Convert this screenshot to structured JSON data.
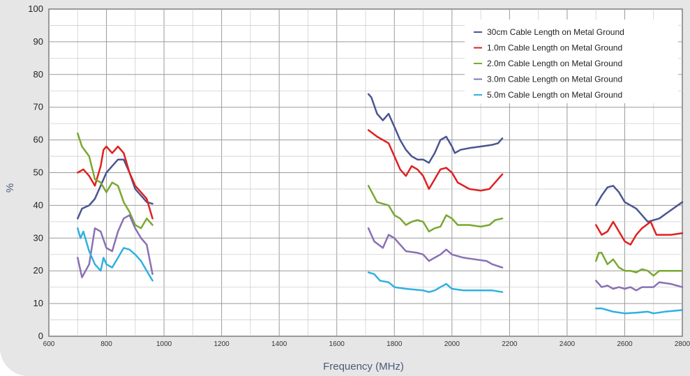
{
  "chart_data": {
    "type": "line",
    "title": "",
    "xlabel": "Frequency (MHz)",
    "ylabel": "%",
    "xlim": [
      600,
      2800
    ],
    "ylim": [
      0,
      100
    ],
    "xticks": [
      "600",
      "800",
      "1000",
      "1200",
      "1400",
      "1600",
      "1800",
      "2000",
      "2200",
      "2400",
      "2600",
      "2800"
    ],
    "yticks": [
      "0",
      "10",
      "20",
      "30",
      "40",
      "50",
      "60",
      "70",
      "80",
      "90",
      "100"
    ],
    "grid": true,
    "legend_position": "top-right",
    "legend": [
      "30cm Cable Length on Metal Ground",
      "1.0m Cable Length on Metal Ground",
      "2.0m Cable Length on Metal Ground",
      "3.0m Cable Length on Metal Ground",
      "5.0m Cable Length on Metal Ground"
    ],
    "series": [
      {
        "name": "30cm Cable Length on Metal Ground",
        "color": "#4a5590",
        "segments": [
          [
            [
              700,
              36
            ],
            [
              715,
              39
            ],
            [
              740,
              40
            ],
            [
              760,
              42
            ],
            [
              780,
              46
            ],
            [
              800,
              50
            ],
            [
              820,
              52
            ],
            [
              840,
              54
            ],
            [
              860,
              54
            ],
            [
              880,
              50
            ],
            [
              900,
              45
            ],
            [
              920,
              43
            ],
            [
              940,
              41
            ],
            [
              960,
              40.5
            ]
          ],
          [
            [
              1710,
              74
            ],
            [
              1720,
              73
            ],
            [
              1740,
              68
            ],
            [
              1760,
              66
            ],
            [
              1780,
              68
            ],
            [
              1800,
              64
            ],
            [
              1820,
              60
            ],
            [
              1840,
              57
            ],
            [
              1860,
              55
            ],
            [
              1880,
              54
            ],
            [
              1900,
              54
            ],
            [
              1920,
              53
            ],
            [
              1940,
              56
            ],
            [
              1960,
              60
            ],
            [
              1980,
              61
            ],
            [
              2000,
              58
            ],
            [
              2010,
              56
            ],
            [
              2030,
              57
            ],
            [
              2060,
              57.5
            ],
            [
              2100,
              58
            ],
            [
              2140,
              58.5
            ],
            [
              2160,
              59
            ],
            [
              2175,
              60.5
            ]
          ],
          [
            [
              2500,
              40
            ],
            [
              2520,
              43
            ],
            [
              2540,
              45.5
            ],
            [
              2560,
              46
            ],
            [
              2580,
              44
            ],
            [
              2600,
              41
            ],
            [
              2640,
              39
            ],
            [
              2680,
              35
            ],
            [
              2720,
              36
            ],
            [
              2760,
              38.5
            ],
            [
              2800,
              41
            ]
          ]
        ]
      },
      {
        "name": "1.0m Cable Length on Metal Ground",
        "color": "#e02020",
        "segments": [
          [
            [
              700,
              50
            ],
            [
              720,
              51
            ],
            [
              740,
              49
            ],
            [
              760,
              46
            ],
            [
              780,
              52
            ],
            [
              790,
              57
            ],
            [
              800,
              58
            ],
            [
              820,
              56
            ],
            [
              840,
              58
            ],
            [
              860,
              56
            ],
            [
              880,
              50
            ],
            [
              900,
              46
            ],
            [
              920,
              44
            ],
            [
              940,
              42
            ],
            [
              960,
              36
            ]
          ],
          [
            [
              1710,
              63
            ],
            [
              1740,
              61
            ],
            [
              1760,
              60
            ],
            [
              1780,
              59
            ],
            [
              1800,
              55
            ],
            [
              1820,
              51
            ],
            [
              1840,
              49
            ],
            [
              1860,
              52
            ],
            [
              1880,
              51
            ],
            [
              1900,
              49
            ],
            [
              1920,
              45
            ],
            [
              1940,
              48
            ],
            [
              1960,
              51
            ],
            [
              1980,
              51.5
            ],
            [
              2000,
              50
            ],
            [
              2020,
              47
            ],
            [
              2060,
              45
            ],
            [
              2100,
              44.5
            ],
            [
              2130,
              45
            ],
            [
              2150,
              47
            ],
            [
              2175,
              49.5
            ]
          ],
          [
            [
              2500,
              34
            ],
            [
              2520,
              31
            ],
            [
              2540,
              32
            ],
            [
              2560,
              35
            ],
            [
              2580,
              32
            ],
            [
              2600,
              29
            ],
            [
              2620,
              28
            ],
            [
              2640,
              31
            ],
            [
              2660,
              33
            ],
            [
              2690,
              35
            ],
            [
              2710,
              31
            ],
            [
              2760,
              31
            ],
            [
              2800,
              31.5
            ]
          ]
        ]
      },
      {
        "name": "2.0m Cable Length on Metal Ground",
        "color": "#7aa830",
        "segments": [
          [
            [
              700,
              62
            ],
            [
              715,
              58
            ],
            [
              740,
              55
            ],
            [
              760,
              48
            ],
            [
              780,
              47
            ],
            [
              800,
              44
            ],
            [
              820,
              47
            ],
            [
              840,
              46
            ],
            [
              860,
              41
            ],
            [
              880,
              38
            ],
            [
              900,
              34
            ],
            [
              920,
              33
            ],
            [
              940,
              36
            ],
            [
              960,
              34
            ]
          ],
          [
            [
              1710,
              46
            ],
            [
              1740,
              41
            ],
            [
              1780,
              40
            ],
            [
              1800,
              37
            ],
            [
              1820,
              36
            ],
            [
              1840,
              34
            ],
            [
              1860,
              35
            ],
            [
              1880,
              35.5
            ],
            [
              1900,
              35
            ],
            [
              1920,
              32
            ],
            [
              1940,
              33
            ],
            [
              1960,
              33.5
            ],
            [
              1980,
              37
            ],
            [
              2000,
              36
            ],
            [
              2020,
              34
            ],
            [
              2060,
              34
            ],
            [
              2100,
              33.5
            ],
            [
              2130,
              34
            ],
            [
              2150,
              35.5
            ],
            [
              2175,
              36
            ]
          ],
          [
            [
              2500,
              23
            ],
            [
              2510,
              25.5
            ],
            [
              2520,
              25.5
            ],
            [
              2540,
              22
            ],
            [
              2560,
              23.5
            ],
            [
              2580,
              21
            ],
            [
              2600,
              20
            ],
            [
              2620,
              20
            ],
            [
              2640,
              19.5
            ],
            [
              2660,
              20.5
            ],
            [
              2680,
              20
            ],
            [
              2700,
              18.5
            ],
            [
              2720,
              20
            ],
            [
              2800,
              20
            ]
          ]
        ]
      },
      {
        "name": "3.0m Cable Length on Metal Ground",
        "color": "#8a70b5",
        "segments": [
          [
            [
              700,
              24
            ],
            [
              715,
              18
            ],
            [
              740,
              22
            ],
            [
              760,
              33
            ],
            [
              780,
              32
            ],
            [
              800,
              27
            ],
            [
              820,
              26
            ],
            [
              840,
              32
            ],
            [
              860,
              36
            ],
            [
              880,
              37
            ],
            [
              900,
              33
            ],
            [
              920,
              30
            ],
            [
              940,
              28
            ],
            [
              960,
              19
            ]
          ],
          [
            [
              1710,
              33
            ],
            [
              1730,
              29
            ],
            [
              1760,
              27
            ],
            [
              1780,
              31
            ],
            [
              1800,
              30
            ],
            [
              1820,
              28
            ],
            [
              1840,
              26
            ],
            [
              1880,
              25.5
            ],
            [
              1900,
              25
            ],
            [
              1920,
              23
            ],
            [
              1940,
              24
            ],
            [
              1960,
              25
            ],
            [
              1980,
              26.5
            ],
            [
              2000,
              25
            ],
            [
              2040,
              24
            ],
            [
              2080,
              23.5
            ],
            [
              2120,
              23
            ],
            [
              2140,
              22
            ],
            [
              2175,
              21
            ]
          ],
          [
            [
              2500,
              17
            ],
            [
              2520,
              15
            ],
            [
              2540,
              15.5
            ],
            [
              2560,
              14.5
            ],
            [
              2580,
              15
            ],
            [
              2600,
              14.5
            ],
            [
              2620,
              15
            ],
            [
              2640,
              14
            ],
            [
              2660,
              15
            ],
            [
              2700,
              15
            ],
            [
              2720,
              16.5
            ],
            [
              2760,
              16
            ],
            [
              2800,
              15
            ]
          ]
        ]
      },
      {
        "name": "",
        "color": "#30b0e0",
        "segments": [
          [
            [
              700,
              33
            ],
            [
              710,
              30
            ],
            [
              720,
              32
            ],
            [
              740,
              26
            ],
            [
              760,
              22
            ],
            [
              780,
              20
            ],
            [
              790,
              24
            ],
            [
              800,
              22
            ],
            [
              820,
              21
            ],
            [
              840,
              24
            ],
            [
              860,
              27
            ],
            [
              880,
              26.5
            ],
            [
              900,
              25
            ],
            [
              920,
              23
            ],
            [
              940,
              20
            ],
            [
              960,
              17
            ]
          ],
          [
            [
              1710,
              19.5
            ],
            [
              1730,
              19
            ],
            [
              1750,
              17
            ],
            [
              1780,
              16.5
            ],
            [
              1800,
              15
            ],
            [
              1840,
              14.5
            ],
            [
              1900,
              14
            ],
            [
              1920,
              13.5
            ],
            [
              1940,
              14
            ],
            [
              1960,
              15
            ],
            [
              1980,
              16
            ],
            [
              2000,
              14.5
            ],
            [
              2040,
              14
            ],
            [
              2100,
              14
            ],
            [
              2140,
              14
            ],
            [
              2175,
              13.5
            ]
          ],
          [
            [
              2500,
              8.5
            ],
            [
              2520,
              8.5
            ],
            [
              2540,
              8
            ],
            [
              2560,
              7.5
            ],
            [
              2600,
              7
            ],
            [
              2640,
              7.2
            ],
            [
              2680,
              7.5
            ],
            [
              2700,
              7
            ],
            [
              2740,
              7.5
            ],
            [
              2800,
              8
            ]
          ]
        ]
      }
    ]
  }
}
